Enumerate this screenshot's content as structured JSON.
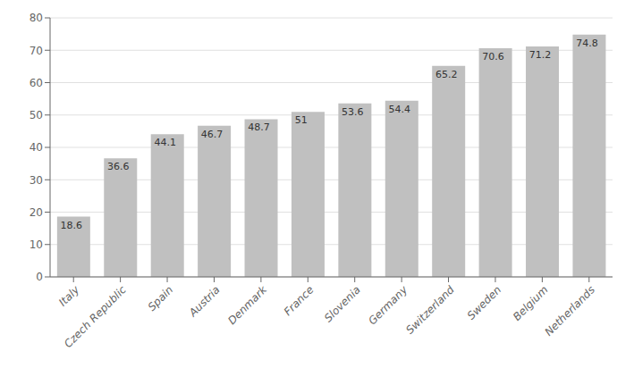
{
  "chart_data": {
    "type": "bar",
    "categories": [
      "Italy",
      "Czech Republic",
      "Spain",
      "Austria",
      "Denmark",
      "France",
      "Slovenia",
      "Germany",
      "Switzerland",
      "Sweden",
      "Belgium",
      "Netherlands"
    ],
    "values": [
      18.6,
      36.6,
      44.1,
      46.7,
      48.7,
      51,
      53.6,
      54.4,
      65.2,
      70.6,
      71.2,
      74.8
    ],
    "color": "#c0c0c0",
    "ylim": [
      0,
      80
    ],
    "yticks": [
      0,
      10,
      20,
      30,
      40,
      50,
      60,
      70,
      80
    ],
    "grid": true,
    "data_labels": true
  }
}
